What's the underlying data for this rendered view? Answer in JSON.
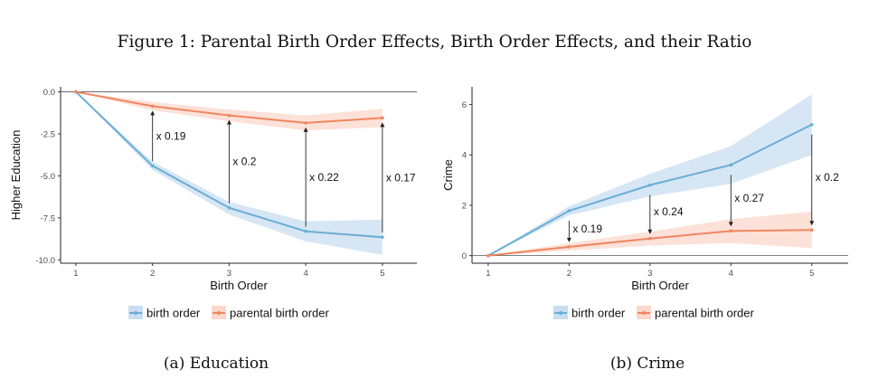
{
  "figure_title": "Figure 1: Parental Birth Order Effects, Birth Order Effects, and their Ratio",
  "colors": {
    "birth_order": "#6aaed6",
    "parental_birth_order": "#f0865f",
    "birth_order_band": "#c9def0",
    "parental_band": "#fbd7cc"
  },
  "chart_data": [
    {
      "type": "line",
      "caption": "(a) Education",
      "xlabel": "Birth Order",
      "ylabel": "Higher Education",
      "x": [
        1,
        2,
        3,
        4,
        5
      ],
      "xlim": [
        0.8,
        5.45
      ],
      "ylim": [
        -10.2,
        0.3
      ],
      "yticks": [
        0,
        -2.5,
        -5,
        -7.5,
        -10
      ],
      "ytick_labels": [
        "0.0",
        "-2.5",
        "-5.0",
        "-7.5",
        "-10.0"
      ],
      "zero_line": true,
      "grid": false,
      "legend_position": "bottom",
      "series": [
        {
          "name": "birth order",
          "color_key": "birth_order",
          "values": [
            0,
            -4.4,
            -6.9,
            -8.3,
            -8.65
          ],
          "lower": [
            0,
            -4.65,
            -7.3,
            -8.9,
            -9.7
          ],
          "upper": [
            0,
            -4.15,
            -6.55,
            -7.7,
            -7.6
          ]
        },
        {
          "name": "parental birth order",
          "color_key": "parental_birth_order",
          "values": [
            0,
            -0.85,
            -1.4,
            -1.85,
            -1.55
          ],
          "lower": [
            0,
            -1.1,
            -1.75,
            -2.3,
            -2.1
          ],
          "upper": [
            0,
            -0.6,
            -1.05,
            -1.4,
            -1.0
          ]
        }
      ],
      "annotations": [
        {
          "x": 2,
          "label": "x 0.19"
        },
        {
          "x": 3,
          "label": "x 0.2"
        },
        {
          "x": 4,
          "label": "x 0.22"
        },
        {
          "x": 5,
          "label": "x 0.17"
        }
      ]
    },
    {
      "type": "line",
      "caption": "(b) Crime",
      "xlabel": "Birth Order",
      "ylabel": "Crime",
      "x": [
        1,
        2,
        3,
        4,
        5
      ],
      "xlim": [
        0.8,
        5.45
      ],
      "ylim": [
        -0.3,
        6.7
      ],
      "yticks": [
        0,
        2,
        4,
        6
      ],
      "ytick_labels": [
        "0",
        "2",
        "4",
        "6"
      ],
      "zero_line": true,
      "grid": false,
      "legend_position": "bottom",
      "series": [
        {
          "name": "birth order",
          "color_key": "birth_order",
          "values": [
            0,
            1.78,
            2.8,
            3.6,
            5.2
          ],
          "lower": [
            0,
            1.6,
            2.35,
            2.85,
            4.0
          ],
          "upper": [
            0,
            1.96,
            3.25,
            4.35,
            6.4
          ]
        },
        {
          "name": "parental birth order",
          "color_key": "parental_birth_order",
          "values": [
            0,
            0.35,
            0.68,
            0.98,
            1.02
          ],
          "lower": [
            0,
            0.2,
            0.4,
            0.5,
            0.3
          ],
          "upper": [
            0,
            0.5,
            0.95,
            1.45,
            1.75
          ]
        }
      ],
      "annotations": [
        {
          "x": 2,
          "label": "x 0.19"
        },
        {
          "x": 3,
          "label": "x 0.24"
        },
        {
          "x": 4,
          "label": "x 0.27"
        },
        {
          "x": 5,
          "label": "x 0.2"
        }
      ]
    }
  ]
}
